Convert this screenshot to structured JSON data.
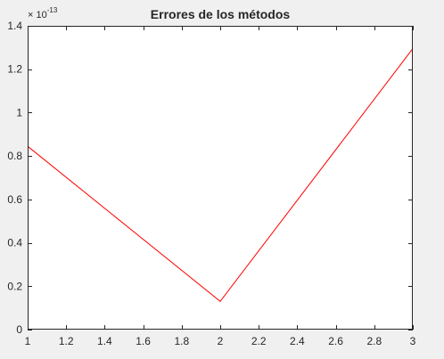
{
  "chart_data": {
    "type": "line",
    "title": "Errores de los métodos",
    "xlabel": "",
    "ylabel": "",
    "xlim": [
      1,
      3
    ],
    "ylim": [
      0,
      1.4
    ],
    "y_exponent_label": "× 10",
    "y_exponent_power": "-13",
    "xticks": [
      1,
      1.2,
      1.4,
      1.6,
      1.8,
      2,
      2.2,
      2.4,
      2.6,
      2.8,
      3
    ],
    "xtick_labels": [
      "1",
      "1.2",
      "1.4",
      "1.6",
      "1.8",
      "2",
      "2.2",
      "2.4",
      "2.6",
      "2.8",
      "3"
    ],
    "yticks": [
      0,
      0.2,
      0.4,
      0.6,
      0.8,
      1,
      1.2,
      1.4
    ],
    "ytick_labels": [
      "0",
      "0.2",
      "0.4",
      "0.6",
      "0.8",
      "1",
      "1.2",
      "1.4"
    ],
    "grid": false,
    "series": [
      {
        "x": [
          1,
          2,
          3
        ],
        "y": [
          0.845,
          0.13,
          1.295
        ],
        "color": "#ff0000"
      }
    ]
  }
}
